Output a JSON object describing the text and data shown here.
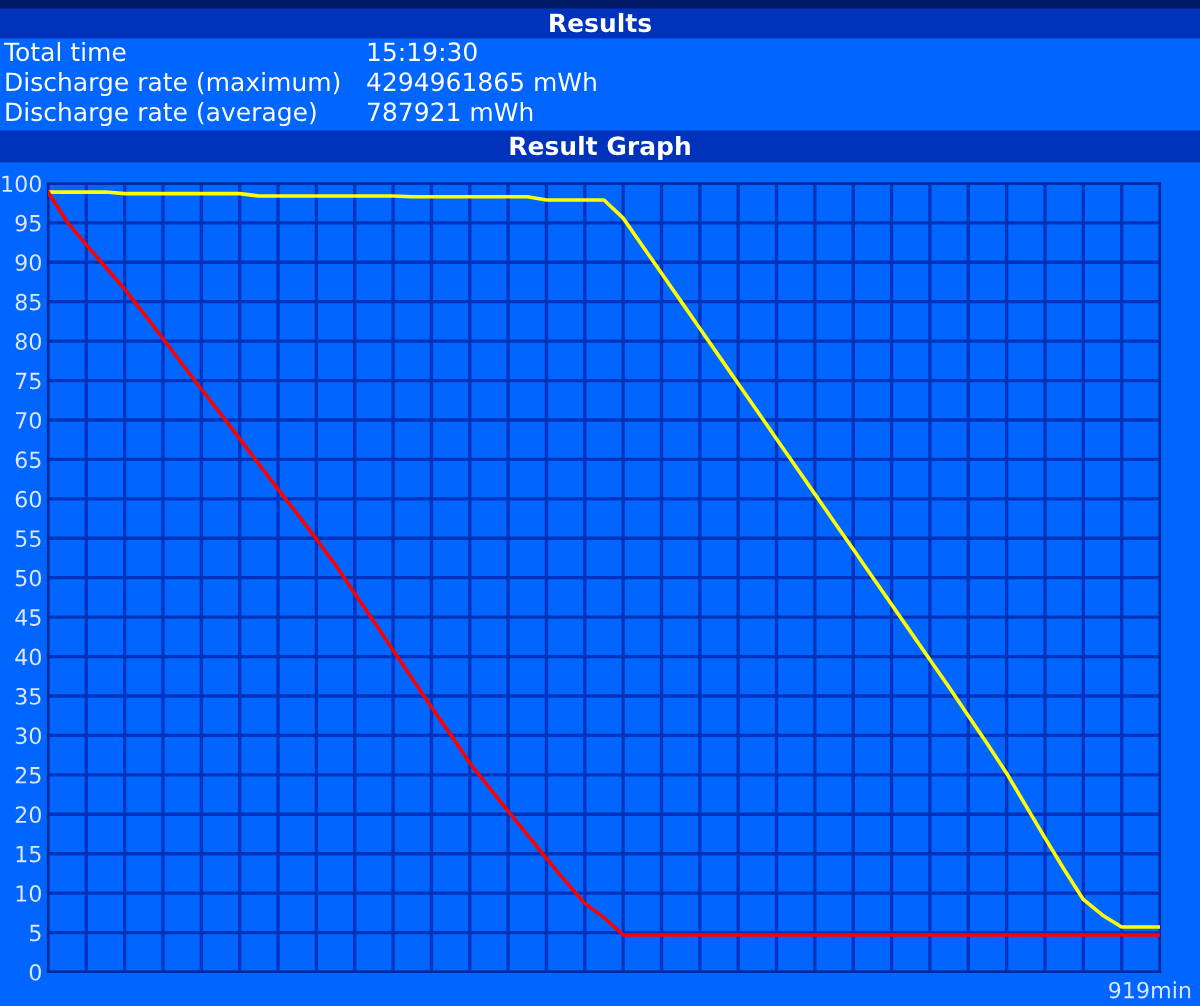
{
  "chart_data": {
    "type": "line",
    "title": "Results",
    "subtitle": "Result Graph",
    "annotations": [
      "Total time",
      "15:19:30",
      "Discharge rate (maximum)",
      "4294961865 mWh",
      "Discharge rate (average)",
      "787921 mWh",
      "919min"
    ],
    "series": [
      {
        "color": "#ffff00",
        "values": [
          98.9,
          98.9,
          98.9,
          98.9,
          98.7,
          98.7,
          98.7,
          98.7,
          98.7,
          98.7,
          98.7,
          98.4,
          98.4,
          98.4,
          98.4,
          98.4,
          98.4,
          98.4,
          98.4,
          98.3,
          98.3,
          98.3,
          98.3,
          98.3,
          98.3,
          98.3,
          97.9,
          97.9,
          97.9,
          97.9,
          95.6,
          92.1,
          88.6,
          85.1,
          81.6,
          78.1,
          74.6,
          71.1,
          67.6,
          64.1,
          60.6,
          57.1,
          53.6,
          50.1,
          46.6,
          43.1,
          39.6,
          36.1,
          32.5,
          28.9,
          25.2,
          21.1,
          17.0,
          13.0,
          9.2,
          7.2,
          5.7,
          5.7,
          5.7
        ]
      },
      {
        "color": "#ff0000",
        "values": [
          98.9,
          95.1,
          92.2,
          89.4,
          86.6,
          83.5,
          80.3,
          77.1,
          73.9,
          70.8,
          67.6,
          64.4,
          61.2,
          58.1,
          54.9,
          51.6,
          48.0,
          44.4,
          40.8,
          37.2,
          33.6,
          30.1,
          26.5,
          23.4,
          20.4,
          17.4,
          14.4,
          11.5,
          8.7,
          6.9,
          4.7,
          4.7,
          4.7,
          4.7,
          4.7,
          4.7,
          4.7,
          4.7,
          4.7,
          4.7,
          4.7,
          4.7,
          4.7,
          4.7,
          4.7,
          4.7,
          4.7,
          4.7,
          4.7,
          4.7,
          4.7,
          4.7,
          4.7,
          4.7,
          4.7,
          4.7,
          4.7,
          4.7,
          4.7
        ]
      }
    ],
    "categories": [
      null,
      null,
      null,
      null,
      null,
      null,
      null,
      null,
      null,
      null,
      null,
      null,
      null,
      null,
      null,
      null,
      null,
      null,
      null,
      null,
      null,
      null,
      null,
      null,
      null,
      null,
      null,
      null,
      null,
      null,
      null,
      null,
      null,
      null,
      null,
      null,
      null,
      null,
      null,
      null,
      null,
      null,
      null,
      null,
      null,
      null,
      null,
      null,
      null,
      null,
      null,
      null,
      null,
      null,
      null,
      null,
      null,
      null,
      null
    ],
    "tick_labels": "y",
    "ylim": [
      0,
      100
    ],
    "yticks": [
      0,
      5,
      10,
      15,
      20,
      25,
      30,
      35,
      40,
      45,
      50,
      55,
      60,
      65,
      70,
      75,
      80,
      85,
      90,
      95,
      100
    ],
    "grid": true,
    "marker": "none",
    "line_style": "solid"
  }
}
